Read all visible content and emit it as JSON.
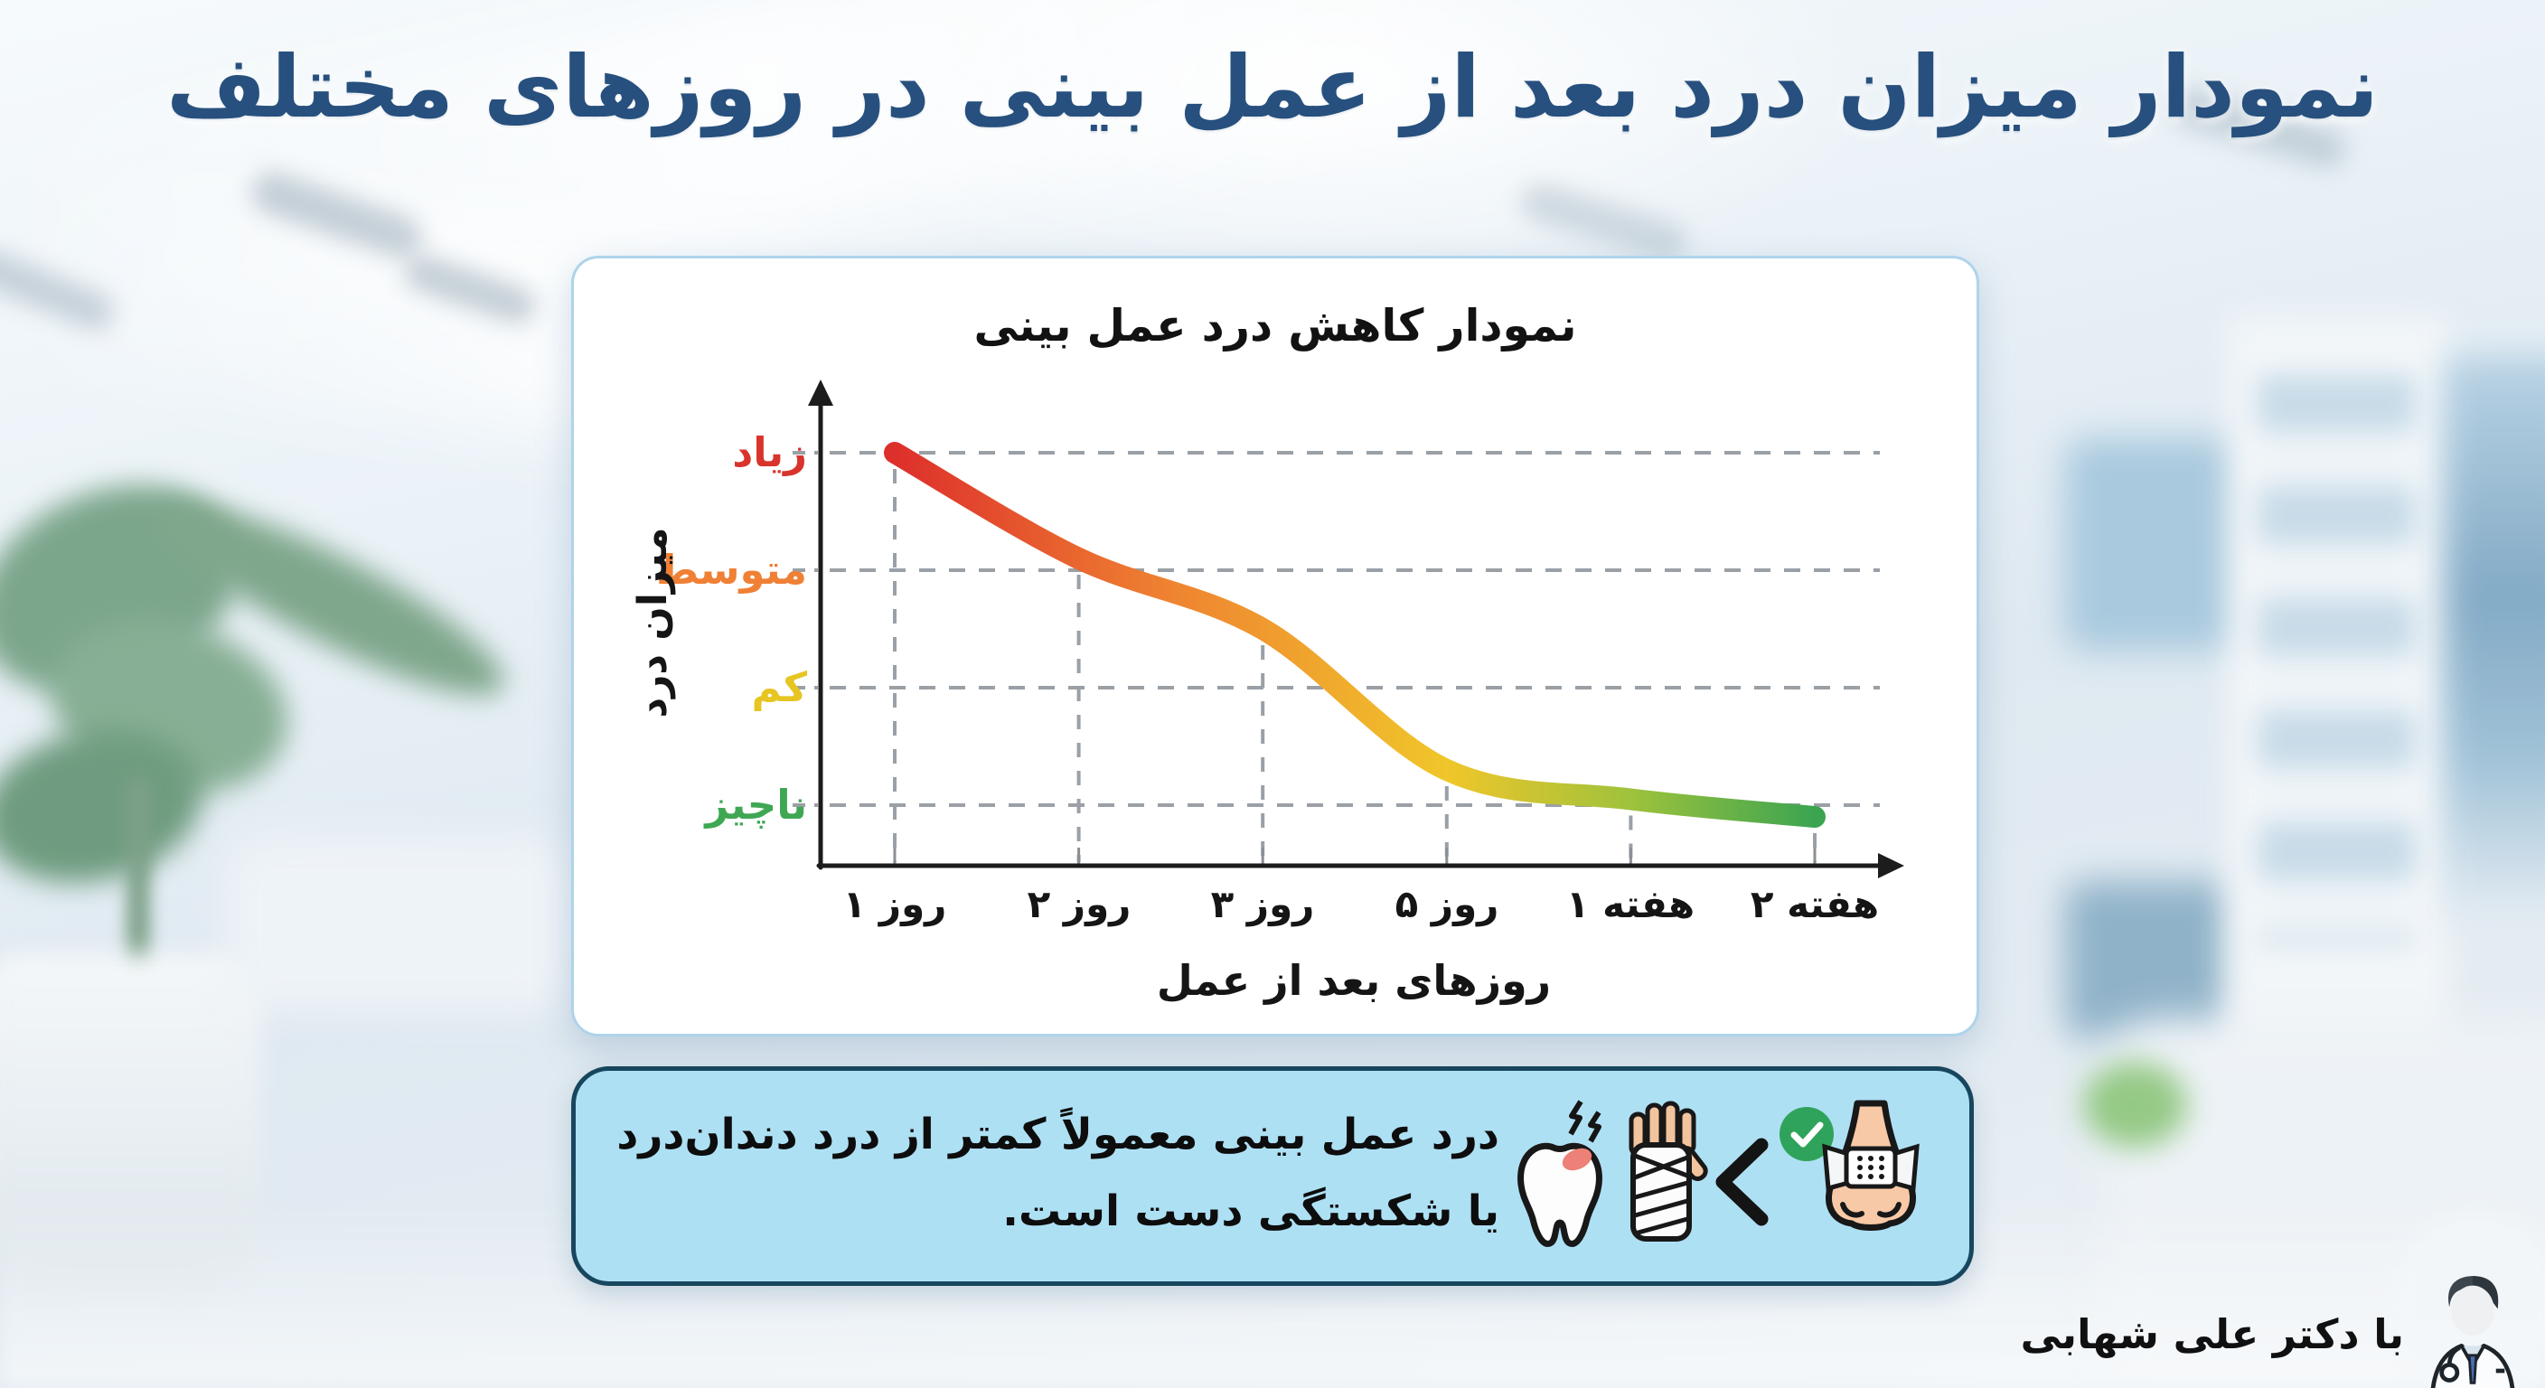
{
  "page": {
    "title": "نمودار میزان درد بعد از عمل بینی در روزهای مختلف",
    "title_color": "#27507e"
  },
  "chart_card": {
    "title": "نمودار کاهش درد عمل بینی",
    "y_axis_title": "میزان درد",
    "x_axis_title": "روزهای بعد از عمل",
    "y_labels": [
      {
        "text": "زیاد",
        "color": "#d8342c"
      },
      {
        "text": "متوسط",
        "color": "#ef8035"
      },
      {
        "text": "کم",
        "color": "#e7c522"
      },
      {
        "text": "ناچیز",
        "color": "#3fa753"
      }
    ],
    "x_labels": [
      "روز ۱",
      "روز ۲",
      "روز ۳",
      "روز ۵",
      "هفته ۱",
      "هفته ۲"
    ]
  },
  "chart_data": {
    "type": "line",
    "title": "نمودار کاهش درد عمل بینی",
    "categories": [
      "روز ۱",
      "روز ۲",
      "روز ۳",
      "روز ۵",
      "هفته ۱",
      "هفته ۲"
    ],
    "series": [
      {
        "name": "میزان درد",
        "values": [
          4.0,
          3.1,
          2.5,
          1.3,
          1.05,
          0.9
        ]
      }
    ],
    "y_scale": [
      {
        "value": 4,
        "label": "زیاد"
      },
      {
        "value": 3,
        "label": "متوسط"
      },
      {
        "value": 2,
        "label": "کم"
      },
      {
        "value": 1,
        "label": "ناچیز"
      }
    ],
    "xlabel": "روزهای بعد از عمل",
    "ylabel": "میزان درد",
    "ylim": [
      0.5,
      4.6
    ],
    "grid": "dashed",
    "legend": "none",
    "line_gradient": [
      {
        "color": "#dd2f2b",
        "offset": 0
      },
      {
        "color": "#ef8331",
        "offset": 0.3
      },
      {
        "color": "#f0c62a",
        "offset": 0.6
      },
      {
        "color": "#9fc23c",
        "offset": 0.8
      },
      {
        "color": "#3ba451",
        "offset": 1
      }
    ]
  },
  "info_card": {
    "text_line1": "درد عمل بینی معمولاً کمتر از درد دندان‌درد",
    "text_line2": "یا شکستگی دست است.",
    "comparison_symbol": "<",
    "bg_color": "#aee0f4",
    "border_color": "#17465e",
    "icons": [
      "aching-tooth-icon",
      "bandaged-wrist-icon",
      "less-than-symbol",
      "green-check-icon",
      "nose-bandage-icon"
    ]
  },
  "credit": {
    "text": "با دکتر علی شهابی",
    "icon": "doctor-avatar-icon"
  }
}
